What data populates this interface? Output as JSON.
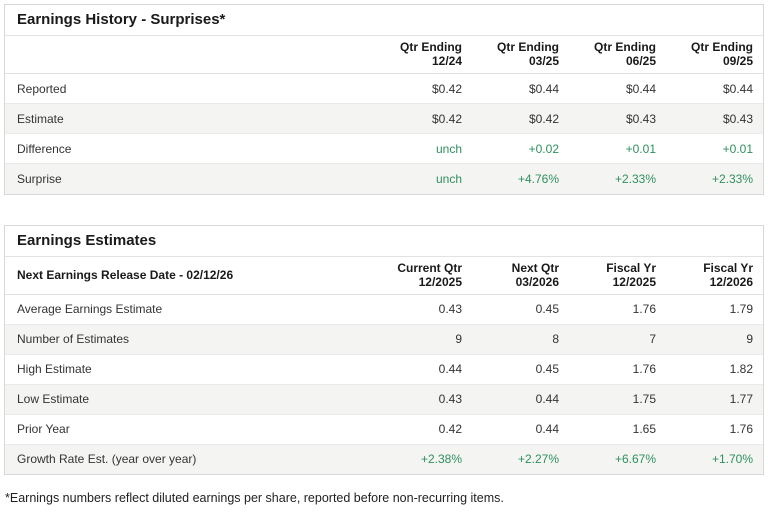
{
  "colors": {
    "accent_green": "#2f8f5f",
    "row_stripe": "#f4f5f3",
    "card_border": "#d8d8d8"
  },
  "history": {
    "title": "Earnings History - Surprises*",
    "columns": [
      {
        "line1": "Qtr Ending",
        "line2": "12/24"
      },
      {
        "line1": "Qtr Ending",
        "line2": "03/25"
      },
      {
        "line1": "Qtr Ending",
        "line2": "06/25"
      },
      {
        "line1": "Qtr Ending",
        "line2": "09/25"
      }
    ],
    "rows": [
      {
        "label": "Reported",
        "values": [
          "$0.42",
          "$0.44",
          "$0.44",
          "$0.44"
        ],
        "green": false
      },
      {
        "label": "Estimate",
        "values": [
          "$0.42",
          "$0.42",
          "$0.43",
          "$0.43"
        ],
        "green": false
      },
      {
        "label": "Difference",
        "values": [
          "unch",
          "+0.02",
          "+0.01",
          "+0.01"
        ],
        "green": true
      },
      {
        "label": "Surprise",
        "values": [
          "unch",
          "+4.76%",
          "+2.33%",
          "+2.33%"
        ],
        "green": true
      }
    ]
  },
  "estimates": {
    "title": "Earnings Estimates",
    "header_label": "Next Earnings Release Date - 02/12/26",
    "columns": [
      {
        "line1": "Current Qtr",
        "line2": "12/2025"
      },
      {
        "line1": "Next Qtr",
        "line2": "03/2026"
      },
      {
        "line1": "Fiscal Yr",
        "line2": "12/2025"
      },
      {
        "line1": "Fiscal Yr",
        "line2": "12/2026"
      }
    ],
    "rows": [
      {
        "label": "Average Earnings Estimate",
        "values": [
          "0.43",
          "0.45",
          "1.76",
          "1.79"
        ],
        "green": false
      },
      {
        "label": "Number of Estimates",
        "values": [
          "9",
          "8",
          "7",
          "9"
        ],
        "green": false
      },
      {
        "label": "High Estimate",
        "values": [
          "0.44",
          "0.45",
          "1.76",
          "1.82"
        ],
        "green": false
      },
      {
        "label": "Low Estimate",
        "values": [
          "0.43",
          "0.44",
          "1.75",
          "1.77"
        ],
        "green": false
      },
      {
        "label": "Prior Year",
        "values": [
          "0.42",
          "0.44",
          "1.65",
          "1.76"
        ],
        "green": false
      },
      {
        "label": "Growth Rate Est. (year over year)",
        "values": [
          "+2.38%",
          "+2.27%",
          "+6.67%",
          "+1.70%"
        ],
        "green": true
      }
    ]
  },
  "footnote": "*Earnings numbers reflect diluted earnings per share, reported before non-recurring items."
}
